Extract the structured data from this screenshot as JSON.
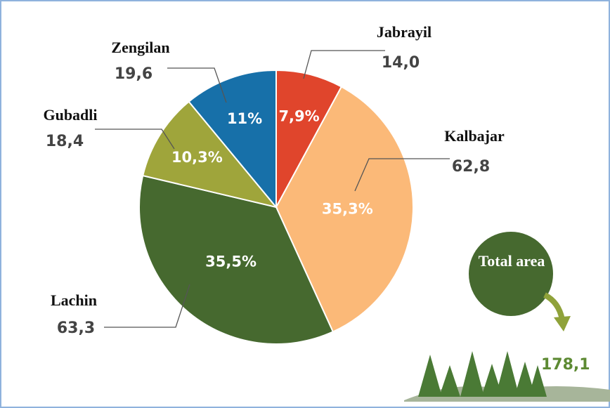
{
  "chart_data": {
    "type": "pie",
    "categories": [
      "Jabrayil",
      "Kalbajar",
      "Lachin",
      "Gubadli",
      "Zengilan"
    ],
    "values": [
      7.9,
      35.3,
      35.5,
      10.3,
      11
    ],
    "value_labels": [
      "7,9%",
      "35,3%",
      "35,5%",
      "10,3%",
      "11%"
    ],
    "colors": [
      "#e0452c",
      "#fbb978",
      "#46692f",
      "#9fa53b",
      "#1770a9"
    ],
    "areas": [
      {
        "value": 14.0,
        "label": "14,0"
      },
      {
        "value": 62.8,
        "label": "62,8"
      },
      {
        "value": 63.3,
        "label": "63,3"
      },
      {
        "value": 18.4,
        "label": "18,4"
      },
      {
        "value": 19.6,
        "label": "19,6"
      }
    ],
    "total": {
      "title": "Total area",
      "value": 178.1,
      "label": "178,1"
    }
  }
}
